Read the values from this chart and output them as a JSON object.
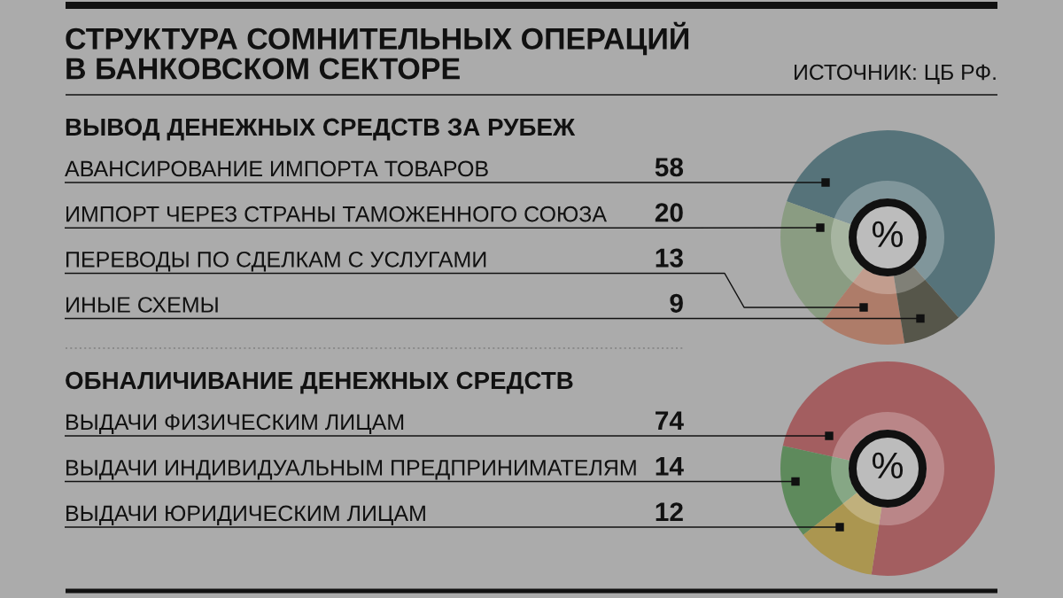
{
  "chart_data": [
    {
      "type": "donut",
      "title": "СТРУКТУРА СОМНИТЕЛЬНЫХ ОПЕРАЦИЙ\nВ БАНКОВСКОМ СЕКТОРЕ",
      "subtitle": "ВЫВОД ДЕНЕЖНЫХ СРЕДСТВ ЗА РУБЕЖ",
      "categories": [
        "АВАНСИРОВАНИЕ ИМПОРТА ТОВАРОВ",
        "ИМПОРТ ЧЕРЕЗ СТРАНЫ ТАМОЖЕННОГО СОЮЗА",
        "ПЕРЕВОДЫ ПО СДЕЛКАМ С УСЛУГАМИ",
        "ИНЫЕ СХЕМЫ"
      ],
      "values": [
        58,
        20,
        13,
        9
      ],
      "colors": [
        "#56737a",
        "#8a9c82",
        "#ae7c69",
        "#56564a"
      ],
      "data_labels": true,
      "annotations": [
        "%",
        "ИСТОЧНИК: ЦБ РФ."
      ]
    },
    {
      "type": "donut",
      "title": "ОБНАЛИЧИВАНИЕ ДЕНЕЖНЫХ СРЕДСТВ",
      "categories": [
        "ВЫДАЧИ ФИЗИЧЕСКИМ ЛИЦАМ",
        "ВЫДАЧИ ИНДИВИДУАЛЬНЫМ ПРЕДПРИНИМАТЕЛЯМ",
        "ВЫДАЧИ ЮРИДИЧЕСКИМ ЛИЦАМ"
      ],
      "values": [
        74,
        14,
        12
      ],
      "colors": [
        "#a35e60",
        "#5e8a5c",
        "#ab9650"
      ],
      "data_labels": true,
      "annotations": [
        "%"
      ]
    }
  ]
}
